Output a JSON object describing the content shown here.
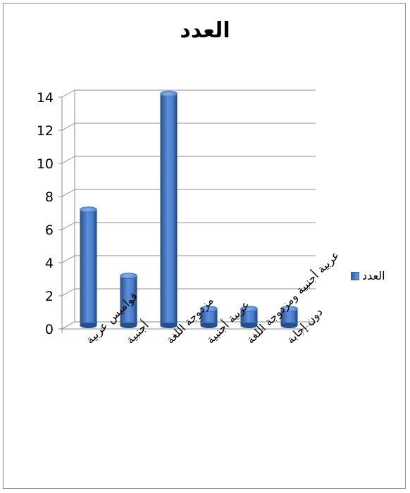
{
  "chart_data": {
    "type": "bar",
    "title": "العدد",
    "categories": [
      "قواميس عربية",
      "أجنبية",
      "مزدوجة اللغة",
      "عربية أجنبية",
      "عربية أجنبية ومزدوجة اللغة",
      "دون إجابة"
    ],
    "series": [
      {
        "name": "العدد",
        "values": [
          7,
          3,
          14,
          1,
          1,
          1
        ],
        "color": "#4a7cc7"
      }
    ],
    "yticks": [
      "0",
      "2",
      "4",
      "6",
      "8",
      "10",
      "12",
      "14"
    ],
    "ylim": [
      0,
      14
    ],
    "grid": true,
    "legend_position": "right",
    "xlabel": "",
    "ylabel": ""
  }
}
